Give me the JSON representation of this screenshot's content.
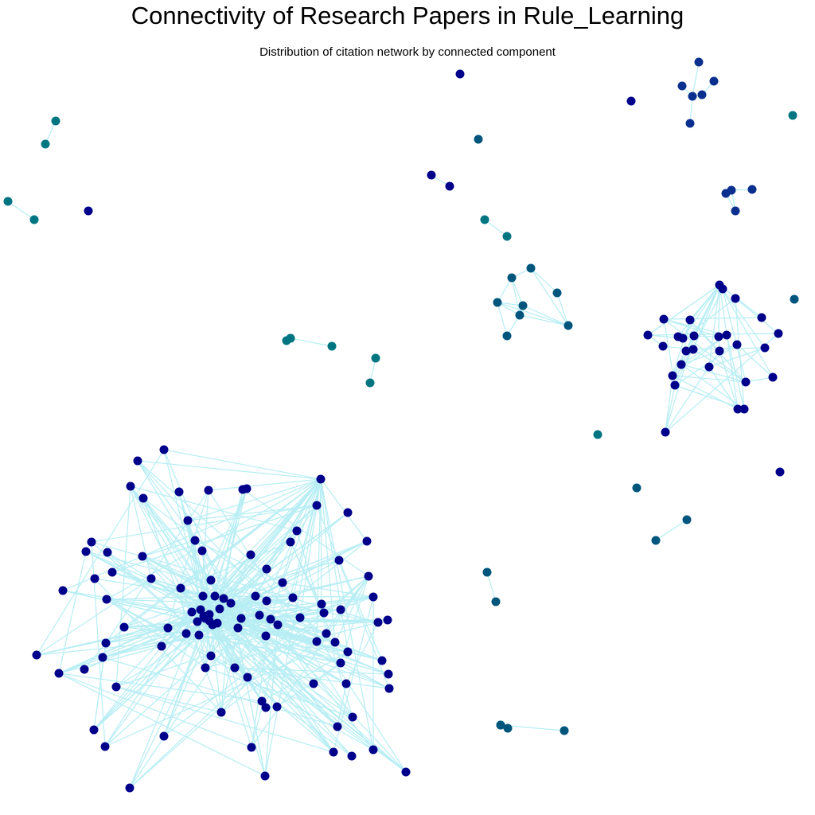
{
  "title": "Connectivity of Research Papers in Rule_Learning",
  "subtitle": "Distribution of citation network by connected component",
  "colors": {
    "edge": "#b7eef4",
    "component_large": "#00008b",
    "component_medium": "#0a2f8f",
    "component_small": "#00557d",
    "component_tiny": "#007582",
    "background": "#ffffff"
  }
}
